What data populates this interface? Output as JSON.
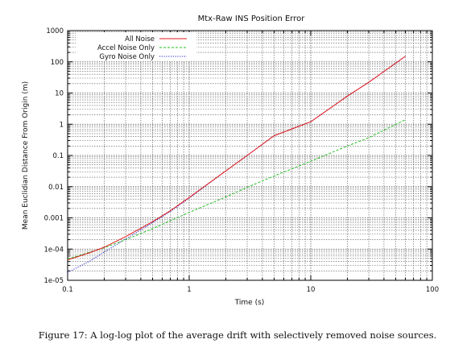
{
  "figure_caption": "Figure 17: A log-log plot of the average drift with selectively removed noise sources.",
  "chart_data": {
    "type": "line",
    "title": "Mtx-Raw INS Position Error",
    "xlabel": "Time (s)",
    "ylabel": "Mean Euclidian Distance From Origin (m)",
    "xscale": "log",
    "yscale": "log",
    "xlim": [
      0.1,
      100
    ],
    "ylim": [
      1e-05,
      1000
    ],
    "x_tick_labels": [
      "0.1",
      "1",
      "10",
      "100"
    ],
    "y_tick_labels": [
      "1e-05",
      "1e-04",
      "0.001",
      "0.01",
      "0.1",
      "1",
      "10",
      "100",
      "1000"
    ],
    "grid": true,
    "legend_position": "top-left",
    "series": [
      {
        "name": "All Noise",
        "color": "#e41a1c",
        "dash": "solid",
        "x": [
          0.1,
          0.15,
          0.2,
          0.3,
          0.5,
          0.7,
          1,
          2,
          3,
          5,
          10,
          20,
          30,
          60
        ],
        "y": [
          4.5e-05,
          7.5e-05,
          0.000115,
          0.00025,
          0.00075,
          0.0017,
          0.0045,
          0.032,
          0.1,
          0.43,
          1.2,
          8,
          22,
          150
        ]
      },
      {
        "name": "Accel Noise Only",
        "color": "#22c022",
        "dash": "dashed",
        "x": [
          0.1,
          0.2,
          0.3,
          0.5,
          1,
          2,
          3,
          5,
          10,
          20,
          30,
          60
        ],
        "y": [
          4.8e-05,
          0.00011,
          0.0002,
          0.00045,
          0.0015,
          0.0047,
          0.0095,
          0.022,
          0.065,
          0.2,
          0.37,
          1.4
        ]
      },
      {
        "name": "Gyro Noise Only",
        "color": "#2222cc",
        "dash": "dotted",
        "x": [
          0.1,
          0.15,
          0.2,
          0.3,
          0.5,
          0.7,
          1,
          2,
          3,
          5,
          10,
          20,
          30,
          60
        ],
        "y": [
          1.8e-05,
          4e-05,
          8e-05,
          0.00021,
          0.0007,
          0.0016,
          0.0043,
          0.032,
          0.1,
          0.43,
          1.2,
          8,
          22,
          150
        ]
      }
    ]
  }
}
